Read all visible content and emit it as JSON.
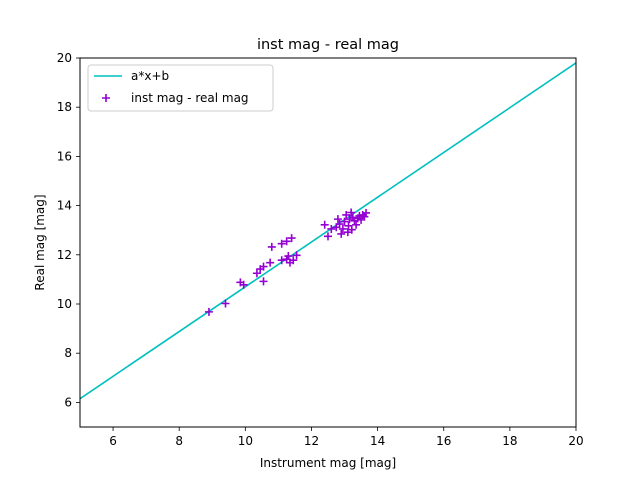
{
  "chart_data": {
    "type": "scatter",
    "title": "inst mag - real mag",
    "xlabel": "Instrument mag [mag]",
    "ylabel": "Real mag [mag]",
    "xlim": [
      5,
      20
    ],
    "ylim": [
      5,
      20
    ],
    "xticks": [
      "6",
      "8",
      "10",
      "12",
      "14",
      "16",
      "18",
      "20"
    ],
    "yticks": [
      "6",
      "8",
      "10",
      "12",
      "14",
      "16",
      "18",
      "20"
    ],
    "grid": false,
    "legend_position": "top-left",
    "colors": {
      "line": "#00bfbf",
      "scatter": "#9400d3"
    },
    "fit_line": {
      "name": "a*x+b",
      "points": [
        [
          5.0,
          6.15
        ],
        [
          20.0,
          19.8
        ]
      ]
    },
    "series": [
      {
        "name": "inst mag - real mag",
        "marker": "plus",
        "points": [
          [
            8.9,
            9.68
          ],
          [
            9.4,
            10.02
          ],
          [
            9.85,
            10.88
          ],
          [
            9.95,
            10.78
          ],
          [
            10.35,
            11.25
          ],
          [
            10.45,
            11.42
          ],
          [
            10.55,
            11.52
          ],
          [
            10.55,
            10.92
          ],
          [
            10.75,
            11.68
          ],
          [
            10.8,
            12.32
          ],
          [
            11.1,
            12.45
          ],
          [
            11.1,
            11.78
          ],
          [
            11.25,
            12.55
          ],
          [
            11.25,
            11.82
          ],
          [
            11.3,
            11.95
          ],
          [
            11.35,
            11.68
          ],
          [
            11.4,
            12.68
          ],
          [
            11.45,
            11.78
          ],
          [
            11.55,
            11.98
          ],
          [
            12.4,
            13.22
          ],
          [
            12.5,
            12.75
          ],
          [
            12.6,
            13.05
          ],
          [
            12.75,
            13.12
          ],
          [
            12.8,
            13.45
          ],
          [
            12.85,
            13.25
          ],
          [
            12.9,
            12.85
          ],
          [
            12.95,
            13.05
          ],
          [
            13.0,
            13.35
          ],
          [
            13.05,
            13.62
          ],
          [
            13.1,
            12.92
          ],
          [
            13.12,
            13.18
          ],
          [
            13.15,
            13.45
          ],
          [
            13.2,
            13.72
          ],
          [
            13.22,
            13.02
          ],
          [
            13.25,
            13.52
          ],
          [
            13.3,
            13.38
          ],
          [
            13.35,
            13.22
          ],
          [
            13.4,
            13.48
          ],
          [
            13.45,
            13.58
          ],
          [
            13.5,
            13.42
          ],
          [
            13.55,
            13.62
          ],
          [
            13.6,
            13.55
          ],
          [
            13.65,
            13.7
          ]
        ]
      }
    ]
  }
}
